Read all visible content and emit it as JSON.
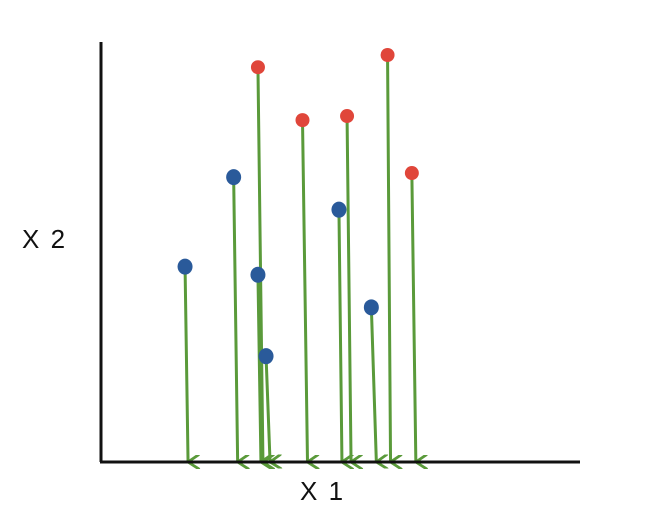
{
  "axes": {
    "x_label": "X 1",
    "y_label": "X 2"
  },
  "colors": {
    "axis": "#111111",
    "arrow": "#5a9a3a",
    "class_red": "#e0463a",
    "class_blue": "#2a5a9a"
  },
  "points": [
    {
      "class": "blue",
      "x1": 0.21,
      "x2": 0.48
    },
    {
      "class": "blue",
      "x1": 0.33,
      "x2": 0.7
    },
    {
      "class": "red",
      "x1": 0.39,
      "x2": 0.97
    },
    {
      "class": "blue",
      "x1": 0.39,
      "x2": 0.46
    },
    {
      "class": "blue",
      "x1": 0.41,
      "x2": 0.26
    },
    {
      "class": "red",
      "x1": 0.5,
      "x2": 0.84
    },
    {
      "class": "blue",
      "x1": 0.59,
      "x2": 0.62
    },
    {
      "class": "red",
      "x1": 0.61,
      "x2": 0.85
    },
    {
      "class": "blue",
      "x1": 0.67,
      "x2": 0.38
    },
    {
      "class": "red",
      "x1": 0.71,
      "x2": 1.0
    },
    {
      "class": "red",
      "x1": 0.77,
      "x2": 0.71
    }
  ]
}
